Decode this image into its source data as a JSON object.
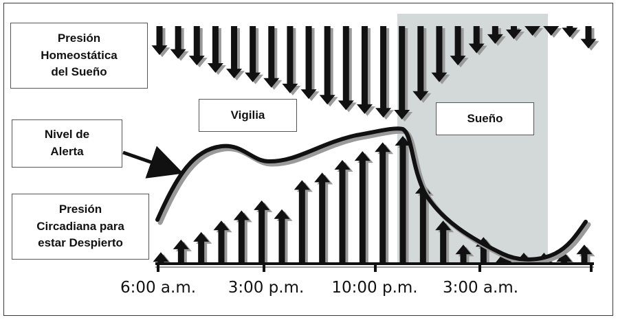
{
  "labels": {
    "homeostatic_pressure": "Presión\nHomeostática\ndel Sueño",
    "alertness_level": "Nivel de\nAlerta",
    "circadian_pressure": "Presión\nCircadiana para\nestar Despierto",
    "wake": "Vigilia",
    "sleep": "Sueño"
  },
  "time_axis": [
    "6:00 a.m.",
    "3:00 p.m.",
    "10:00 p.m.",
    "3:00 a.m."
  ],
  "colors": {
    "arrow": "#111111",
    "arrow_shadow": "#9a9a9a",
    "sleep_shading": "#d3d9d9",
    "curve": "#111111"
  },
  "homeostatic_arrows_relative_length": [
    0.31,
    0.35,
    0.42,
    0.5,
    0.56,
    0.6,
    0.66,
    0.72,
    0.78,
    0.84,
    0.9,
    0.94,
    0.98,
    1.0,
    0.8,
    0.6,
    0.42,
    0.29,
    0.19,
    0.14,
    0.09,
    0.05,
    0.12,
    0.24
  ],
  "circadian_arrows_relative_length": [
    0.08,
    0.18,
    0.24,
    0.33,
    0.41,
    0.49,
    0.42,
    0.65,
    0.71,
    0.81,
    0.88,
    0.95,
    1.0,
    0.62,
    0.33,
    0.14,
    0.2,
    0.03,
    0.02,
    0.03,
    0.08,
    0.14
  ]
}
